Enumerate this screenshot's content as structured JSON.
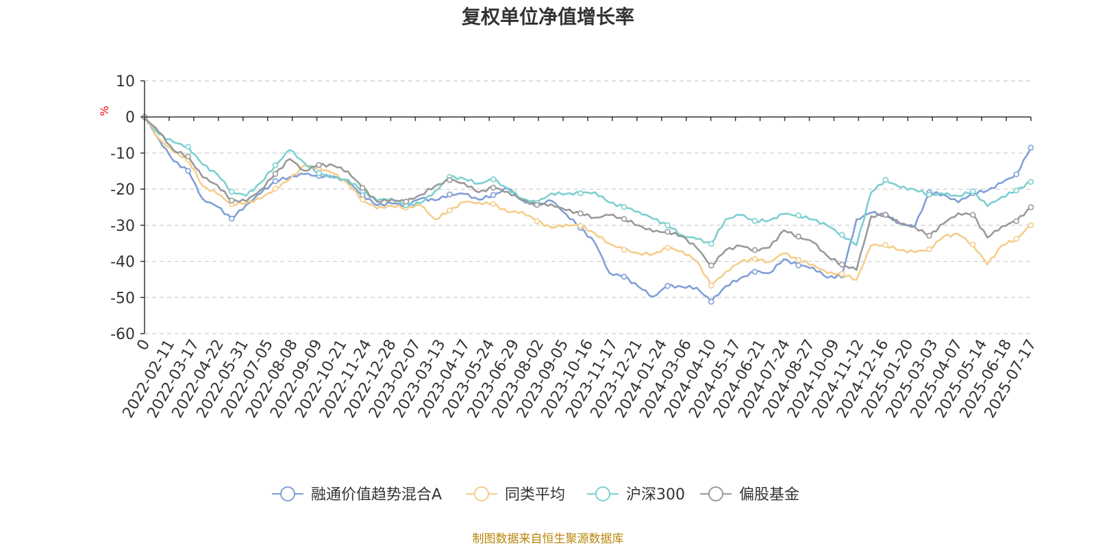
{
  "chart_data": {
    "type": "line",
    "title": "复权单位净值增长率",
    "y_unit": "%",
    "ylim": [
      -60,
      10
    ],
    "y_ticks": [
      "10",
      "0",
      "-10",
      "-20",
      "-30",
      "-40",
      "-50",
      "-60"
    ],
    "x_tick_labels": [
      "0",
      "2022-02-11",
      "2022-03-17",
      "2022-04-22",
      "2022-05-31",
      "2022-07-05",
      "2022-08-08",
      "2022-09-09",
      "2022-10-21",
      "2022-11-24",
      "2022-12-28",
      "2023-02-07",
      "2023-03-13",
      "2023-04-17",
      "2023-05-24",
      "2023-06-29",
      "2023-08-02",
      "2023-09-05",
      "2023-10-16",
      "2023-11-17",
      "2023-12-21",
      "2024-01-24",
      "2024-03-06",
      "2024-04-10",
      "2024-05-17",
      "2024-06-21",
      "2024-07-24",
      "2024-08-27",
      "2024-10-09",
      "2024-11-12",
      "2024-12-16",
      "2025-01-20",
      "2025-03-03",
      "2025-04-07",
      "2025-05-14",
      "2025-06-18",
      "2025-07-17"
    ],
    "grid": true,
    "legend_position": "bottom",
    "source": "制图数据来自恒生聚源数据库",
    "series": [
      {
        "name": "融通价值趋势混合A",
        "color": "#7f9fd6",
        "values": [
          0,
          -7,
          -13,
          -15,
          -22,
          -24,
          -28,
          -25,
          -22,
          -18,
          -16,
          -15,
          -16,
          -17,
          -19,
          -22,
          -24,
          -23,
          -24,
          -23,
          -24,
          -22,
          -21,
          -22,
          -21,
          -20,
          -24,
          -25,
          -23,
          -26,
          -30,
          -35,
          -44,
          -45,
          -47,
          -49,
          -46,
          -47,
          -48,
          -52,
          -47,
          -44,
          -42,
          -43,
          -40,
          -42,
          -42,
          -44,
          -43,
          -28,
          -27,
          -28,
          -30,
          -30,
          -20,
          -21,
          -24,
          -22,
          -21,
          -18,
          -15,
          -8.5
        ]
      },
      {
        "name": "同类平均",
        "color": "#f5cd8a",
        "values": [
          0,
          -6,
          -9,
          -11,
          -19,
          -22,
          -25,
          -24,
          -22,
          -19,
          -17,
          -14,
          -15,
          -16,
          -18,
          -22,
          -25,
          -25,
          -26,
          -25,
          -28,
          -25,
          -23,
          -24,
          -25,
          -27,
          -26,
          -28,
          -30,
          -30,
          -31,
          -33,
          -35,
          -36,
          -37,
          -38,
          -37,
          -38,
          -40,
          -46,
          -42,
          -40,
          -40,
          -41,
          -38,
          -39,
          -40,
          -43,
          -44,
          -46,
          -36,
          -35,
          -36,
          -37,
          -37,
          -34,
          -33,
          -35,
          -40,
          -35,
          -34,
          -30
        ]
      },
      {
        "name": "沪深300",
        "color": "#7dcfcf",
        "values": [
          0,
          -4,
          -7,
          -9,
          -14,
          -16,
          -20,
          -21,
          -18,
          -14,
          -10,
          -13,
          -15,
          -16,
          -17,
          -21,
          -24,
          -23,
          -24,
          -23,
          -20,
          -17,
          -18,
          -19,
          -17,
          -19,
          -22,
          -24,
          -22,
          -22,
          -21,
          -20,
          -23,
          -25,
          -27,
          -29,
          -30,
          -32,
          -33,
          -35,
          -29,
          -28,
          -29,
          -28,
          -26,
          -27,
          -29,
          -31,
          -33,
          -35,
          -20,
          -17,
          -20,
          -21,
          -22,
          -21,
          -21,
          -20,
          -25,
          -23,
          -21,
          -18
        ]
      },
      {
        "name": "偏股基金",
        "color": "#999999",
        "values": [
          0,
          -5,
          -10,
          -11,
          -16,
          -18,
          -23,
          -24,
          -21,
          -16,
          -11,
          -14,
          -13,
          -14,
          -16,
          -20,
          -23,
          -22,
          -23,
          -22,
          -20,
          -18,
          -18,
          -20,
          -19,
          -21,
          -24,
          -25,
          -24,
          -25,
          -26,
          -28,
          -28,
          -29,
          -30,
          -31,
          -31,
          -33,
          -37,
          -42,
          -37,
          -35,
          -36,
          -36,
          -32,
          -34,
          -35,
          -38,
          -40,
          -42,
          -28,
          -28,
          -30,
          -30,
          -32,
          -29,
          -27,
          -28,
          -34,
          -30,
          -28,
          -25
        ]
      }
    ]
  }
}
